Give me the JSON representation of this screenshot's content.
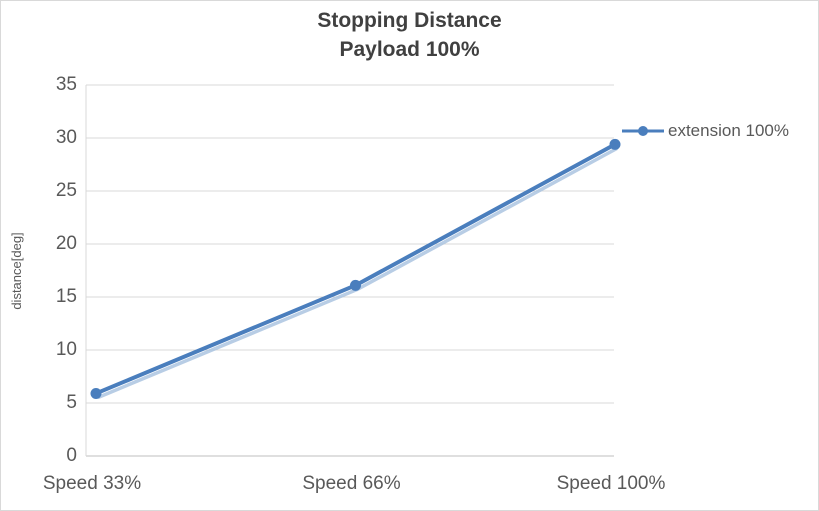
{
  "chart": {
    "title_line1": "Stopping Distance",
    "title_line2": "Payload 100%",
    "y_axis_title": "distance[deg]",
    "legend_label": "extension 100%"
  },
  "chart_data": {
    "type": "line",
    "title": "Stopping Distance Payload 100%",
    "categories": [
      "Speed 33%",
      "Speed 66%",
      "Speed 100%"
    ],
    "series": [
      {
        "name": "extension 100%",
        "values": [
          5.9,
          16.1,
          29.4
        ]
      }
    ],
    "xlabel": "",
    "ylabel": "distance[deg]",
    "ylim": [
      0,
      35
    ],
    "ytick_step": 5,
    "grid": true,
    "legend_position": "right",
    "marker": "circle",
    "colors": {
      "series": "#4a7ebd",
      "shadow": "#a6c0de",
      "grid": "#d9d9d9",
      "axis": "#bfbfbf",
      "text": "#595959",
      "title": "#404040"
    }
  }
}
